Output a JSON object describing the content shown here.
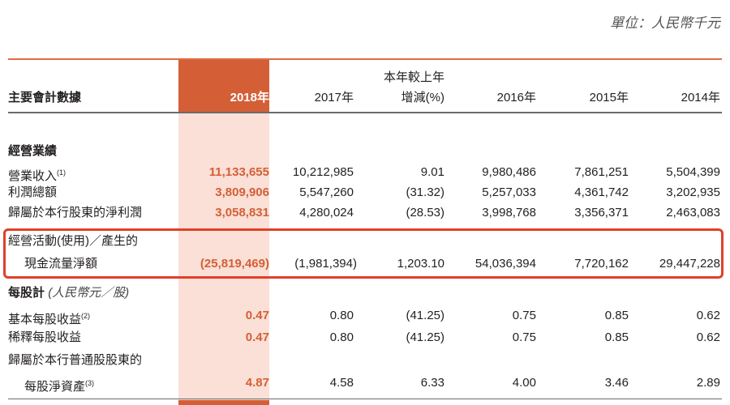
{
  "unit": "單位：人民幣千元",
  "header": {
    "label": "主要會計數據",
    "change_top": "本年較上年",
    "cols": [
      "2018年",
      "2017年",
      "增減(%)",
      "2016年",
      "2015年",
      "2014年"
    ]
  },
  "section1": {
    "title": "經營業績",
    "rows": [
      {
        "label": "營業收入",
        "note": "(1)",
        "values": [
          "11,133,655",
          "10,212,985",
          "9.01",
          "9,980,486",
          "7,861,251",
          "5,504,399"
        ]
      },
      {
        "label": "利潤總額",
        "note": "",
        "values": [
          "3,809,906",
          "5,547,260",
          "(31.32)",
          "5,257,033",
          "4,361,742",
          "3,202,935"
        ]
      },
      {
        "label": "歸屬於本行股東的淨利潤",
        "note": "",
        "values": [
          "3,058,831",
          "4,280,024",
          "(28.53)",
          "3,998,768",
          "3,356,371",
          "2,463,083"
        ]
      }
    ]
  },
  "cashflow": {
    "label1": "經營活動(使用)／產生的",
    "label2": "現金流量淨額",
    "values": [
      "(25,819,469)",
      "(1,981,394)",
      "1,203.10",
      "54,036,394",
      "7,720,162",
      "29,447,228"
    ]
  },
  "section2": {
    "title": "每股計",
    "subtitle": "(人民幣元／股)",
    "rows": [
      {
        "label": "基本每股收益",
        "note": "(2)",
        "values": [
          "0.47",
          "0.80",
          "(41.25)",
          "0.75",
          "0.85",
          "0.62"
        ]
      },
      {
        "label": "稀釋每股收益",
        "note": "",
        "values": [
          "0.47",
          "0.80",
          "(41.25)",
          "0.75",
          "0.85",
          "0.62"
        ]
      }
    ],
    "nav_label1": "歸屬於本行普通股股東的",
    "nav_label2": "每股淨資產",
    "nav_note": "(3)",
    "nav_values": [
      "4.87",
      "4.58",
      "6.33",
      "4.00",
      "3.46",
      "2.89"
    ]
  }
}
